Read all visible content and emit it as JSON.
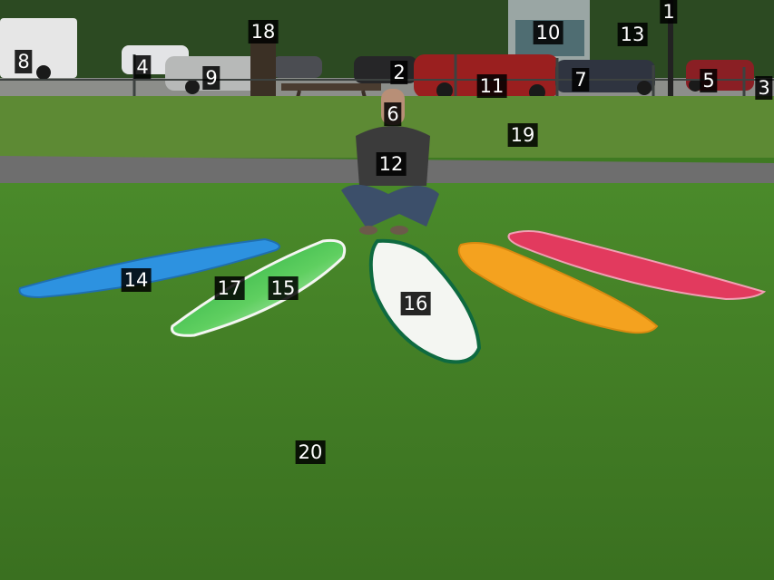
{
  "image": {
    "colors": {
      "lawn": "#3f7a22",
      "back_lawn": "#5d8a34",
      "path": "#6e6e6e",
      "trees": "#2c4a22",
      "building": "#9aa6a4",
      "board_blue": "#2d92e0",
      "board_green": "#2db34a",
      "board_white": "#f4f6f2",
      "board_white_rail": "#0e6a40",
      "board_yellow": "#f4a21f",
      "board_red": "#e23a5e",
      "shirt": "#3b3b3b",
      "jeans": "#3c4f6a"
    }
  },
  "labels": [
    {
      "id": "1",
      "text": "1"
    },
    {
      "id": "2",
      "text": "2"
    },
    {
      "id": "3",
      "text": "3"
    },
    {
      "id": "4",
      "text": "4"
    },
    {
      "id": "5",
      "text": "5"
    },
    {
      "id": "6",
      "text": "6"
    },
    {
      "id": "7",
      "text": "7"
    },
    {
      "id": "8",
      "text": "8"
    },
    {
      "id": "9",
      "text": "9"
    },
    {
      "id": "10",
      "text": "10"
    },
    {
      "id": "11",
      "text": "11"
    },
    {
      "id": "12",
      "text": "12"
    },
    {
      "id": "13",
      "text": "13"
    },
    {
      "id": "14",
      "text": "14"
    },
    {
      "id": "15",
      "text": "15"
    },
    {
      "id": "16",
      "text": "16"
    },
    {
      "id": "17",
      "text": "17"
    },
    {
      "id": "18",
      "text": "18"
    },
    {
      "id": "19",
      "text": "19"
    },
    {
      "id": "20",
      "text": "20"
    }
  ]
}
